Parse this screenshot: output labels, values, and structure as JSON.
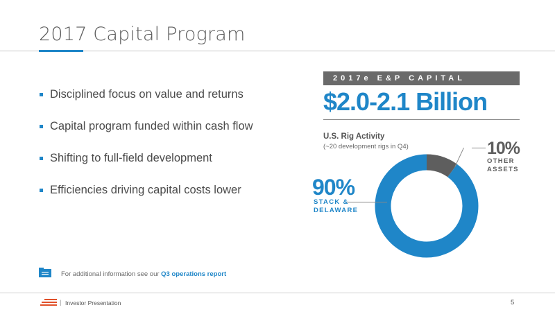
{
  "title": "2017 Capital Program",
  "bullets": [
    "Disciplined focus on value and returns",
    "Capital program funded within cash flow",
    "Shifting to full-field development",
    "Efficiencies driving capital costs lower"
  ],
  "capital": {
    "banner": "2017e E&P CAPITAL",
    "amount": "$2.0-2.1 Billion"
  },
  "rig_activity": {
    "title": "U.S. Rig Activity",
    "subtitle": "(~20 development rigs in Q4)"
  },
  "chart_data": {
    "type": "pie",
    "variant": "donut",
    "categories": [
      "STACK & DELAWARE",
      "OTHER ASSETS"
    ],
    "values": [
      90,
      10
    ],
    "labels": [
      "90%",
      "10%"
    ],
    "colors": [
      "#1f86c8",
      "#5e5e5e"
    ]
  },
  "segments": {
    "main": {
      "pct": "90%",
      "line1": "STACK &",
      "line2": "DELAWARE"
    },
    "other": {
      "pct": "10%",
      "line1": "OTHER",
      "line2": "ASSETS"
    }
  },
  "note": {
    "text": "For additional information see our",
    "link": "Q3 operations report"
  },
  "footer": {
    "separator": "|",
    "text": "Investor Presentation",
    "page": "5"
  }
}
